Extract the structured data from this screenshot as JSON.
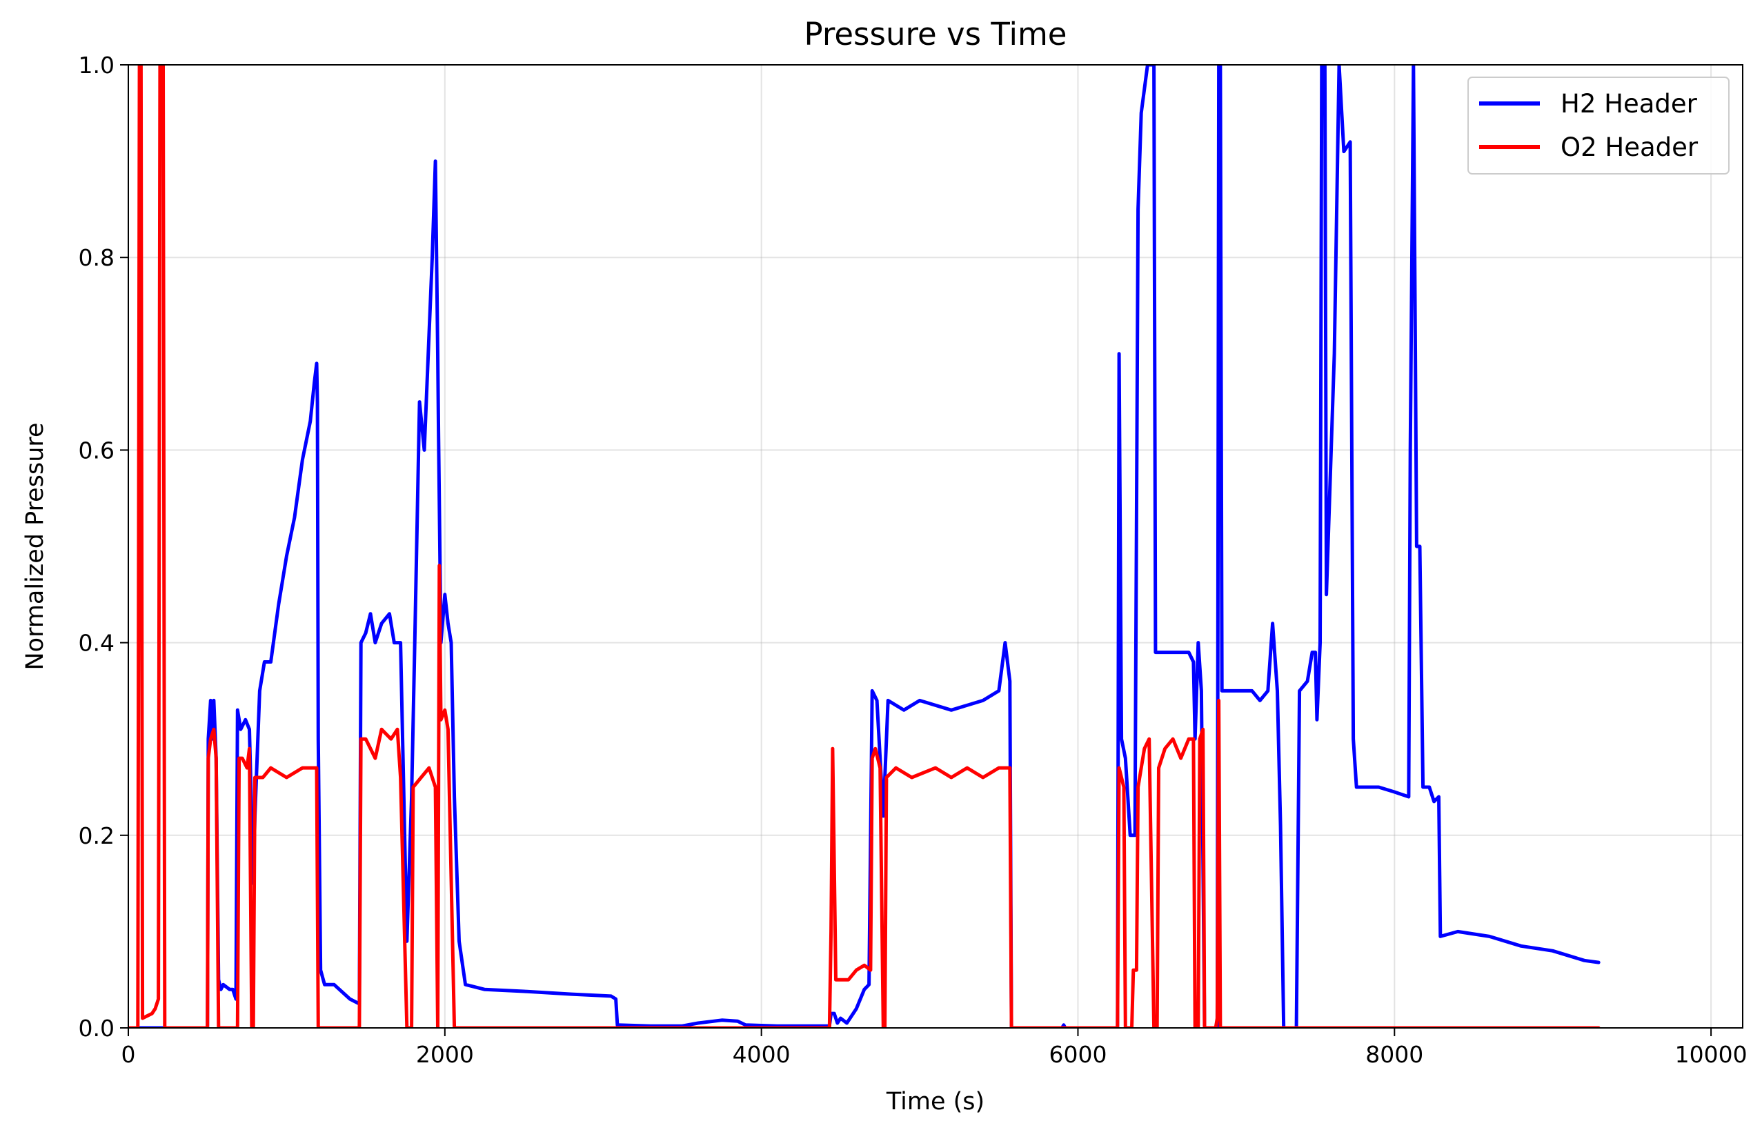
{
  "chart_data": {
    "type": "line",
    "title": "Pressure vs Time",
    "xlabel": "Time (s)",
    "ylabel": "Normalized Pressure",
    "xlim": [
      0,
      10200
    ],
    "ylim": [
      0.0,
      1.0
    ],
    "xticks": [
      0,
      2000,
      4000,
      6000,
      8000,
      10000
    ],
    "xtick_labels": [
      "0",
      "2000",
      "4000",
      "6000",
      "8000",
      "10000"
    ],
    "yticks": [
      0.0,
      0.2,
      0.4,
      0.6,
      0.8,
      1.0
    ],
    "ytick_labels": [
      "0.0",
      "0.2",
      "0.4",
      "0.6",
      "0.8",
      "1.0"
    ],
    "grid": true,
    "legend_position": "top-right",
    "series": [
      {
        "name": "H2 Header",
        "color": "#0000ff",
        "points": [
          [
            0,
            0
          ],
          [
            500,
            0
          ],
          [
            505,
            0.3
          ],
          [
            520,
            0.34
          ],
          [
            530,
            0.3
          ],
          [
            540,
            0.34
          ],
          [
            555,
            0.28
          ],
          [
            570,
            0.05
          ],
          [
            585,
            0.04
          ],
          [
            600,
            0.045
          ],
          [
            640,
            0.04
          ],
          [
            660,
            0.04
          ],
          [
            680,
            0.03
          ],
          [
            690,
            0.33
          ],
          [
            710,
            0.31
          ],
          [
            740,
            0.32
          ],
          [
            765,
            0.31
          ],
          [
            790,
            0.15
          ],
          [
            800,
            0.22
          ],
          [
            830,
            0.35
          ],
          [
            860,
            0.38
          ],
          [
            900,
            0.38
          ],
          [
            950,
            0.44
          ],
          [
            1000,
            0.49
          ],
          [
            1050,
            0.53
          ],
          [
            1100,
            0.59
          ],
          [
            1150,
            0.63
          ],
          [
            1175,
            0.67
          ],
          [
            1190,
            0.69
          ],
          [
            1195,
            0.65
          ],
          [
            1200,
            0.3
          ],
          [
            1215,
            0.06
          ],
          [
            1240,
            0.045
          ],
          [
            1300,
            0.045
          ],
          [
            1400,
            0.03
          ],
          [
            1460,
            0.025
          ],
          [
            1470,
            0.4
          ],
          [
            1500,
            0.41
          ],
          [
            1530,
            0.43
          ],
          [
            1560,
            0.4
          ],
          [
            1600,
            0.42
          ],
          [
            1650,
            0.43
          ],
          [
            1680,
            0.4
          ],
          [
            1720,
            0.4
          ],
          [
            1760,
            0.09
          ],
          [
            1790,
            0.24
          ],
          [
            1810,
            0.4
          ],
          [
            1840,
            0.65
          ],
          [
            1870,
            0.6
          ],
          [
            1900,
            0.72
          ],
          [
            1920,
            0.8
          ],
          [
            1940,
            0.9
          ],
          [
            1955,
            0.7
          ],
          [
            1960,
            0.62
          ],
          [
            1975,
            0.4
          ],
          [
            2000,
            0.45
          ],
          [
            2020,
            0.42
          ],
          [
            2040,
            0.4
          ],
          [
            2060,
            0.24
          ],
          [
            2090,
            0.09
          ],
          [
            2130,
            0.045
          ],
          [
            2250,
            0.04
          ],
          [
            2500,
            0.038
          ],
          [
            2800,
            0.035
          ],
          [
            3050,
            0.033
          ],
          [
            3080,
            0.03
          ],
          [
            3090,
            0.003
          ],
          [
            3300,
            0.002
          ],
          [
            3500,
            0.002
          ],
          [
            3600,
            0.005
          ],
          [
            3750,
            0.008
          ],
          [
            3850,
            0.007
          ],
          [
            3900,
            0.003
          ],
          [
            4100,
            0.002
          ],
          [
            4430,
            0.002
          ],
          [
            4440,
            0.015
          ],
          [
            4460,
            0.015
          ],
          [
            4480,
            0.005
          ],
          [
            4500,
            0.01
          ],
          [
            4540,
            0.005
          ],
          [
            4600,
            0.02
          ],
          [
            4650,
            0.04
          ],
          [
            4680,
            0.045
          ],
          [
            4700,
            0.35
          ],
          [
            4730,
            0.34
          ],
          [
            4770,
            0.22
          ],
          [
            4800,
            0.34
          ],
          [
            4900,
            0.33
          ],
          [
            5000,
            0.34
          ],
          [
            5200,
            0.33
          ],
          [
            5400,
            0.34
          ],
          [
            5500,
            0.35
          ],
          [
            5540,
            0.4
          ],
          [
            5570,
            0.36
          ],
          [
            5580,
            0.0
          ],
          [
            5900,
            0.0
          ],
          [
            5910,
            0.003
          ],
          [
            5920,
            0.0
          ],
          [
            6250,
            0.0
          ],
          [
            6260,
            0.7
          ],
          [
            6275,
            0.3
          ],
          [
            6300,
            0.28
          ],
          [
            6330,
            0.2
          ],
          [
            6360,
            0.2
          ],
          [
            6380,
            0.85
          ],
          [
            6400,
            0.95
          ],
          [
            6440,
            1.0
          ],
          [
            6480,
            1.0
          ],
          [
            6490,
            0.39
          ],
          [
            6600,
            0.39
          ],
          [
            6700,
            0.39
          ],
          [
            6730,
            0.38
          ],
          [
            6740,
            0.3
          ],
          [
            6760,
            0.4
          ],
          [
            6780,
            0.35
          ],
          [
            6800,
            0.0
          ],
          [
            6880,
            0.0
          ],
          [
            6890,
            1.0
          ],
          [
            6900,
            1.0
          ],
          [
            6910,
            0.35
          ],
          [
            7000,
            0.35
          ],
          [
            7100,
            0.35
          ],
          [
            7150,
            0.34
          ],
          [
            7200,
            0.35
          ],
          [
            7230,
            0.42
          ],
          [
            7260,
            0.35
          ],
          [
            7280,
            0.21
          ],
          [
            7300,
            0.0
          ],
          [
            7380,
            0.0
          ],
          [
            7400,
            0.35
          ],
          [
            7450,
            0.36
          ],
          [
            7480,
            0.39
          ],
          [
            7500,
            0.39
          ],
          [
            7510,
            0.32
          ],
          [
            7530,
            0.4
          ],
          [
            7540,
            1.0
          ],
          [
            7560,
            1.0
          ],
          [
            7570,
            0.45
          ],
          [
            7620,
            0.7
          ],
          [
            7650,
            1.0
          ],
          [
            7680,
            0.91
          ],
          [
            7720,
            0.92
          ],
          [
            7740,
            0.3
          ],
          [
            7760,
            0.25
          ],
          [
            7900,
            0.25
          ],
          [
            8000,
            0.245
          ],
          [
            8090,
            0.24
          ],
          [
            8100,
            0.6
          ],
          [
            8120,
            1.0
          ],
          [
            8140,
            0.5
          ],
          [
            8160,
            0.5
          ],
          [
            8180,
            0.25
          ],
          [
            8220,
            0.25
          ],
          [
            8250,
            0.235
          ],
          [
            8280,
            0.24
          ],
          [
            8290,
            0.095
          ],
          [
            8400,
            0.1
          ],
          [
            8600,
            0.095
          ],
          [
            8800,
            0.085
          ],
          [
            9000,
            0.08
          ],
          [
            9200,
            0.07
          ],
          [
            9290,
            0.068
          ]
        ]
      },
      {
        "name": "O2 Header",
        "color": "#ff0000",
        "points": [
          [
            0,
            0
          ],
          [
            60,
            0
          ],
          [
            70,
            1.0
          ],
          [
            80,
            1.0
          ],
          [
            90,
            0.01
          ],
          [
            150,
            0.015
          ],
          [
            170,
            0.02
          ],
          [
            190,
            0.03
          ],
          [
            200,
            1.0
          ],
          [
            220,
            1.0
          ],
          [
            230,
            0.0
          ],
          [
            500,
            0
          ],
          [
            505,
            0.28
          ],
          [
            520,
            0.3
          ],
          [
            540,
            0.31
          ],
          [
            555,
            0.28
          ],
          [
            570,
            0.0
          ],
          [
            690,
            0.0
          ],
          [
            700,
            0.28
          ],
          [
            720,
            0.28
          ],
          [
            750,
            0.27
          ],
          [
            765,
            0.29
          ],
          [
            780,
            0.0
          ],
          [
            790,
            0.0
          ],
          [
            800,
            0.26
          ],
          [
            850,
            0.26
          ],
          [
            900,
            0.27
          ],
          [
            1000,
            0.26
          ],
          [
            1100,
            0.27
          ],
          [
            1190,
            0.27
          ],
          [
            1200,
            0.0
          ],
          [
            1460,
            0.0
          ],
          [
            1470,
            0.3
          ],
          [
            1500,
            0.3
          ],
          [
            1560,
            0.28
          ],
          [
            1600,
            0.31
          ],
          [
            1660,
            0.3
          ],
          [
            1700,
            0.31
          ],
          [
            1720,
            0.26
          ],
          [
            1760,
            0.0
          ],
          [
            1790,
            0.0
          ],
          [
            1800,
            0.25
          ],
          [
            1850,
            0.26
          ],
          [
            1900,
            0.27
          ],
          [
            1940,
            0.25
          ],
          [
            1955,
            0.0
          ],
          [
            1965,
            0.48
          ],
          [
            1975,
            0.32
          ],
          [
            2000,
            0.33
          ],
          [
            2020,
            0.31
          ],
          [
            2060,
            0.0
          ],
          [
            4430,
            0.0
          ],
          [
            4440,
            0.1
          ],
          [
            4450,
            0.29
          ],
          [
            4470,
            0.05
          ],
          [
            4500,
            0.05
          ],
          [
            4550,
            0.05
          ],
          [
            4600,
            0.06
          ],
          [
            4650,
            0.065
          ],
          [
            4690,
            0.06
          ],
          [
            4700,
            0.28
          ],
          [
            4720,
            0.29
          ],
          [
            4750,
            0.27
          ],
          [
            4770,
            0.0
          ],
          [
            4780,
            0.0
          ],
          [
            4790,
            0.26
          ],
          [
            4850,
            0.27
          ],
          [
            4950,
            0.26
          ],
          [
            5100,
            0.27
          ],
          [
            5200,
            0.26
          ],
          [
            5300,
            0.27
          ],
          [
            5400,
            0.26
          ],
          [
            5500,
            0.27
          ],
          [
            5570,
            0.27
          ],
          [
            5580,
            0.0
          ],
          [
            6250,
            0.0
          ],
          [
            6260,
            0.27
          ],
          [
            6290,
            0.25
          ],
          [
            6300,
            0.0
          ],
          [
            6340,
            0.0
          ],
          [
            6350,
            0.06
          ],
          [
            6370,
            0.06
          ],
          [
            6380,
            0.25
          ],
          [
            6420,
            0.29
          ],
          [
            6450,
            0.3
          ],
          [
            6480,
            0.0
          ],
          [
            6500,
            0.0
          ],
          [
            6510,
            0.27
          ],
          [
            6550,
            0.29
          ],
          [
            6600,
            0.3
          ],
          [
            6650,
            0.28
          ],
          [
            6700,
            0.3
          ],
          [
            6730,
            0.3
          ],
          [
            6740,
            0.0
          ],
          [
            6760,
            0.0
          ],
          [
            6770,
            0.3
          ],
          [
            6790,
            0.31
          ],
          [
            6800,
            0.0
          ],
          [
            6870,
            0.0
          ],
          [
            6880,
            0.01
          ],
          [
            6890,
            0.34
          ],
          [
            6900,
            0.0
          ],
          [
            9290,
            0.0
          ]
        ]
      }
    ]
  }
}
